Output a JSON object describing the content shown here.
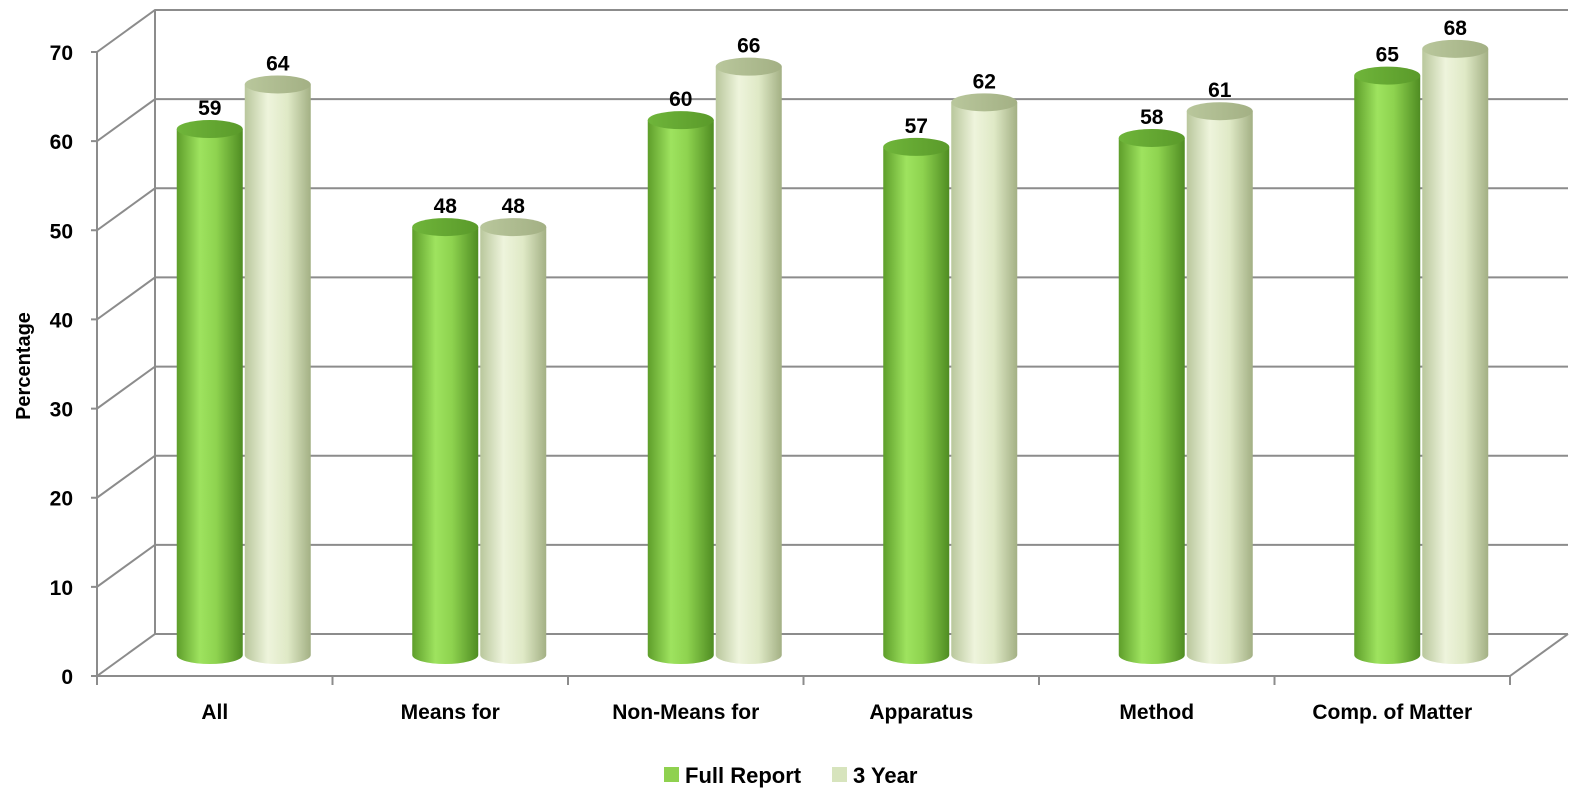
{
  "chart_data": {
    "type": "bar",
    "style": "3d-cylinder",
    "ylabel": "Percentage",
    "xlabel": "",
    "ylim": [
      0,
      70
    ],
    "yticks": [
      0,
      10,
      20,
      30,
      40,
      50,
      60,
      70
    ],
    "grid": true,
    "legend_position": "bottom",
    "categories": [
      "All",
      "Means for",
      "Non-Means for",
      "Apparatus",
      "Method",
      "Comp. of Matter"
    ],
    "series": [
      {
        "name": "Full Report",
        "color": "#8fd14f",
        "values": [
          59,
          48,
          60,
          57,
          58,
          65
        ]
      },
      {
        "name": "3 Year",
        "color": "#d7e4bd",
        "values": [
          64,
          48,
          66,
          62,
          61,
          68
        ]
      }
    ]
  }
}
